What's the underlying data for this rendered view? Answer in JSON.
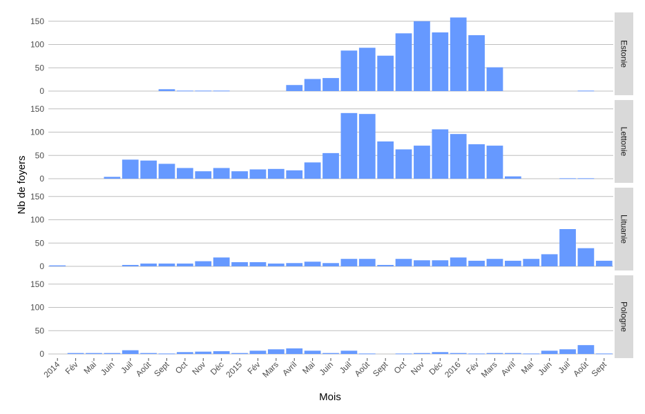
{
  "chart_data": {
    "type": "bar",
    "xlabel": "Mois",
    "ylabel": "Nb de foyers",
    "ylim": [
      0,
      160
    ],
    "y_ticks": [
      0,
      50,
      100,
      150
    ],
    "grid": true,
    "facet_position": "right",
    "bar_color": "#6699FF",
    "grid_color": "#BEBEBE",
    "strip_color": "#D9D9D9",
    "categories": [
      "2014",
      "Fév",
      "Mai",
      "Juin",
      "Juil",
      "Août",
      "Sept",
      "Oct",
      "Nov",
      "Déc",
      "2015",
      "Fév",
      "Mars",
      "Avril",
      "Mai",
      "Juin",
      "Juil",
      "Août",
      "Sept",
      "Oct",
      "Nov",
      "Déc",
      "2016",
      "Fév",
      "Mars",
      "Avril",
      "Mai",
      "Juin",
      "Juil",
      "Août",
      "Sept"
    ],
    "series": [
      {
        "name": "Estonie",
        "values": [
          0,
          0,
          0,
          0,
          0,
          0,
          4,
          1,
          1,
          1,
          0,
          0,
          0,
          13,
          26,
          28,
          87,
          93,
          76,
          124,
          150,
          126,
          158,
          120,
          51,
          0,
          0,
          0,
          0,
          1,
          0
        ]
      },
      {
        "name": "Lettonie",
        "values": [
          0,
          0,
          0,
          4,
          41,
          39,
          32,
          23,
          16,
          23,
          16,
          20,
          21,
          18,
          35,
          55,
          141,
          139,
          80,
          63,
          71,
          106,
          96,
          74,
          71,
          5,
          0,
          0,
          1,
          1,
          0
        ]
      },
      {
        "name": "Lituanie",
        "values": [
          2,
          0,
          0,
          0,
          3,
          6,
          6,
          6,
          11,
          19,
          9,
          9,
          6,
          7,
          10,
          7,
          16,
          16,
          3,
          16,
          13,
          13,
          19,
          12,
          16,
          12,
          16,
          26,
          80,
          39,
          12
        ]
      },
      {
        "name": "Pologne",
        "values": [
          0,
          2,
          2,
          2,
          8,
          2,
          1,
          4,
          5,
          6,
          2,
          7,
          10,
          12,
          7,
          2,
          7,
          1,
          0,
          1,
          2,
          4,
          2,
          1,
          2,
          2,
          1,
          7,
          10,
          19,
          1
        ]
      }
    ]
  }
}
